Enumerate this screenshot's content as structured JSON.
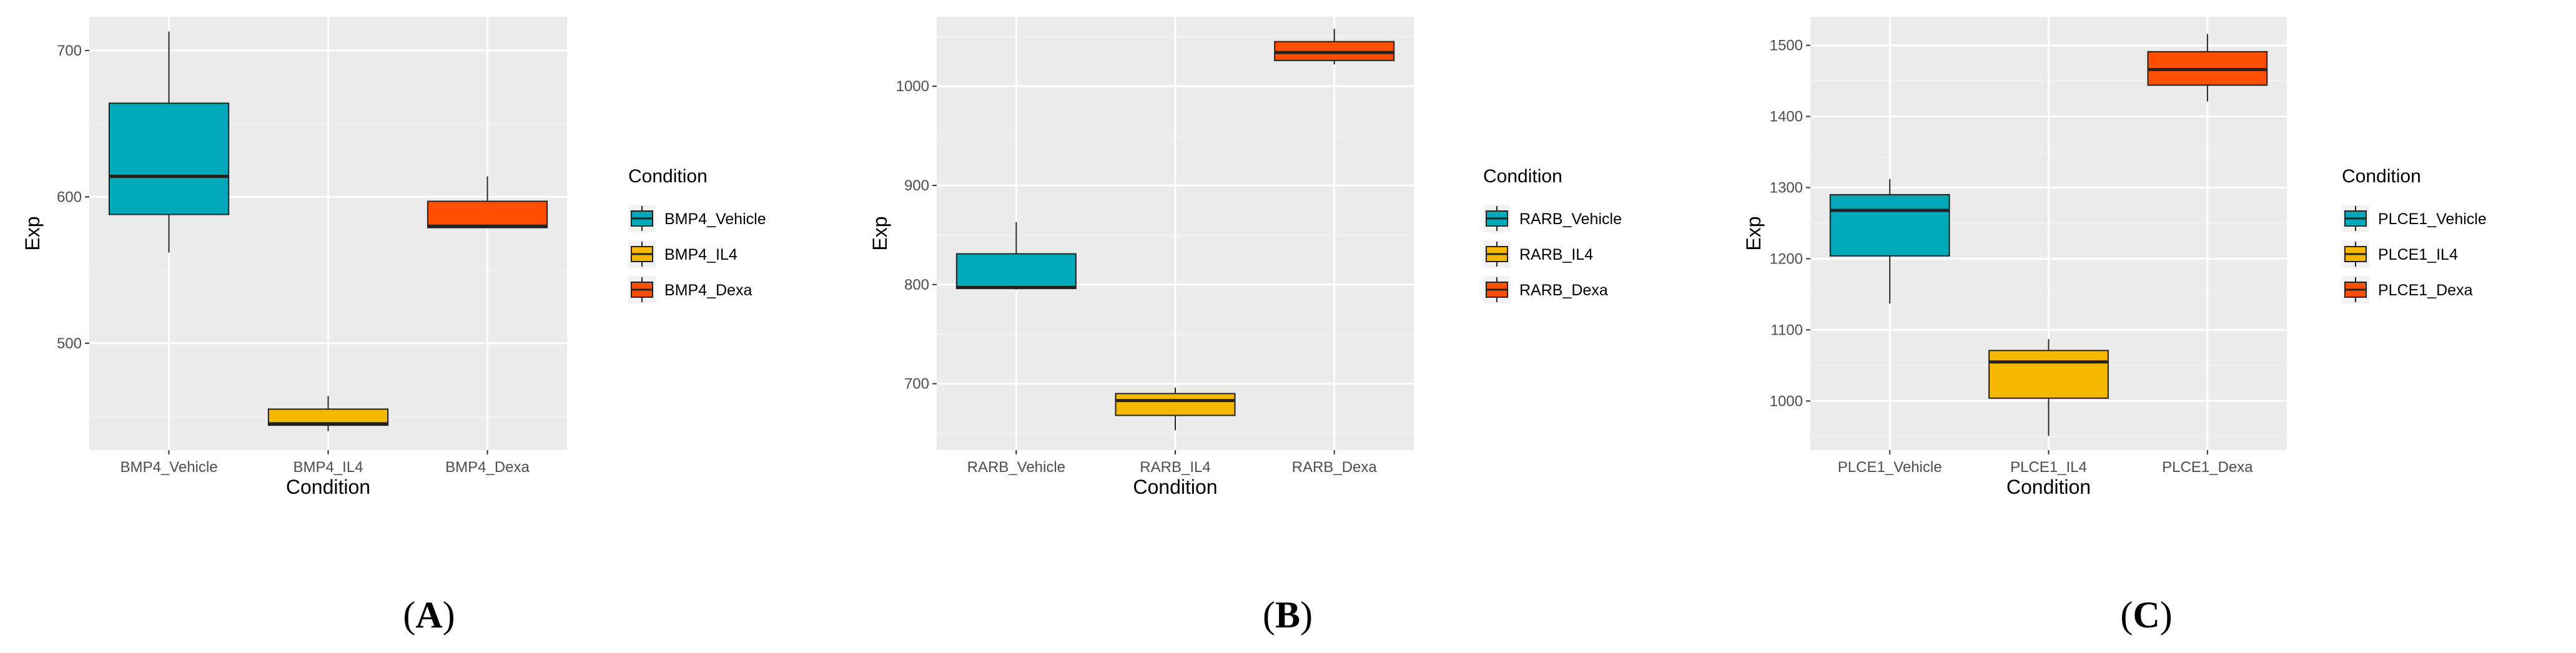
{
  "colors": {
    "panel_bg": "#ebebeb",
    "grid_major": "#ffffff",
    "grid_minor": "#f5f5f5",
    "box_outline": "#222222",
    "vehicle": "#00a9b8",
    "il4": "#f5b800",
    "dexa": "#fe4e00"
  },
  "chart_data": [
    {
      "type": "box",
      "panel_label": "A",
      "xlabel": "Condition",
      "ylabel": "Exp",
      "ylim": [
        427,
        723
      ],
      "yticks": [
        500,
        600,
        700
      ],
      "legend_title": "Condition",
      "legend_position": "right",
      "categories": [
        "BMP4_Vehicle",
        "BMP4_IL4",
        "BMP4_Dexa"
      ],
      "series": [
        {
          "name": "BMP4_Vehicle",
          "color_key": "vehicle",
          "min": 562,
          "q1": 588,
          "median": 614,
          "q3": 664,
          "max": 713
        },
        {
          "name": "BMP4_IL4",
          "color_key": "il4",
          "min": 440,
          "q1": 444,
          "median": 445,
          "q3": 455,
          "max": 464
        },
        {
          "name": "BMP4_Dexa",
          "color_key": "dexa",
          "min": 579,
          "q1": 579,
          "median": 580,
          "q3": 597,
          "max": 614
        }
      ]
    },
    {
      "type": "box",
      "panel_label": "B",
      "xlabel": "Condition",
      "ylabel": "Exp",
      "ylim": [
        633,
        1070
      ],
      "yticks": [
        700,
        800,
        900,
        1000
      ],
      "legend_title": "Condition",
      "legend_position": "right",
      "categories": [
        "RARB_Vehicle",
        "RARB_IL4",
        "RARB_Dexa"
      ],
      "series": [
        {
          "name": "RARB_Vehicle",
          "color_key": "vehicle",
          "min": 795,
          "q1": 796,
          "median": 797,
          "q3": 831,
          "max": 863
        },
        {
          "name": "RARB_IL4",
          "color_key": "il4",
          "min": 653,
          "q1": 668,
          "median": 683,
          "q3": 690,
          "max": 696
        },
        {
          "name": "RARB_Dexa",
          "color_key": "dexa",
          "min": 1022,
          "q1": 1026,
          "median": 1034,
          "q3": 1045,
          "max": 1058
        }
      ]
    },
    {
      "type": "box",
      "panel_label": "C",
      "xlabel": "Condition",
      "ylabel": "Exp",
      "ylim": [
        931,
        1540
      ],
      "yticks": [
        1000,
        1100,
        1200,
        1300,
        1400,
        1500
      ],
      "legend_title": "Condition",
      "legend_position": "right",
      "categories": [
        "PLCE1_Vehicle",
        "PLCE1_IL4",
        "PLCE1_Dexa"
      ],
      "series": [
        {
          "name": "PLCE1_Vehicle",
          "color_key": "vehicle",
          "min": 1137,
          "q1": 1204,
          "median": 1268,
          "q3": 1290,
          "max": 1312
        },
        {
          "name": "PLCE1_IL4",
          "color_key": "il4",
          "min": 951,
          "q1": 1004,
          "median": 1055,
          "q3": 1071,
          "max": 1087
        },
        {
          "name": "PLCE1_Dexa",
          "color_key": "dexa",
          "min": 1421,
          "q1": 1444,
          "median": 1466,
          "q3": 1491,
          "max": 1516
        }
      ]
    }
  ]
}
